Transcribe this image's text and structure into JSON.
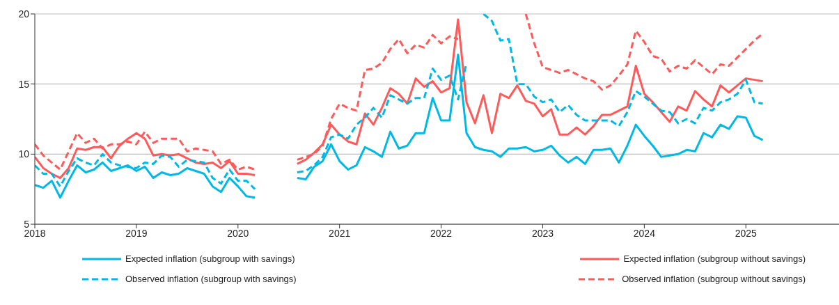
{
  "chart_data": {
    "type": "line",
    "x": [
      "2018-01",
      "2018-02",
      "2018-03",
      "2018-04",
      "2018-05",
      "2018-06",
      "2018-07",
      "2018-08",
      "2018-09",
      "2018-10",
      "2018-11",
      "2018-12",
      "2019-01",
      "2019-02",
      "2019-03",
      "2019-04",
      "2019-05",
      "2019-06",
      "2019-07",
      "2019-08",
      "2019-09",
      "2019-10",
      "2019-11",
      "2019-12",
      "2020-01",
      "2020-02",
      "2020-03",
      "2020-04",
      "2020-05",
      "2020-06",
      "2020-07",
      "2020-08",
      "2020-09",
      "2020-10",
      "2020-11",
      "2020-12",
      "2021-01",
      "2021-02",
      "2021-03",
      "2021-04",
      "2021-05",
      "2021-06",
      "2021-07",
      "2021-08",
      "2021-09",
      "2021-10",
      "2021-11",
      "2021-12",
      "2022-01",
      "2022-02",
      "2022-03",
      "2022-04",
      "2022-05",
      "2022-06",
      "2022-07",
      "2022-08",
      "2022-09",
      "2022-10",
      "2022-11",
      "2022-12",
      "2023-01",
      "2023-02",
      "2023-03",
      "2023-04",
      "2023-05",
      "2023-06",
      "2023-07",
      "2023-08",
      "2023-09",
      "2023-10",
      "2023-11",
      "2023-12",
      "2024-01",
      "2024-02",
      "2024-03",
      "2024-04",
      "2024-05",
      "2024-06",
      "2024-07",
      "2024-08",
      "2024-09",
      "2024-10",
      "2024-11",
      "2024-12",
      "2025-01",
      "2025-02",
      "2025-03"
    ],
    "series": [
      {
        "name": "Expected inflation (subgroup with savings)",
        "color": "#00b8e6",
        "line_style": "solid",
        "values": [
          7.8,
          7.6,
          8.1,
          6.9,
          8.1,
          9.2,
          8.7,
          8.9,
          9.4,
          8.8,
          9.0,
          9.2,
          8.8,
          9.1,
          8.3,
          8.7,
          8.5,
          8.6,
          9.0,
          8.8,
          8.6,
          7.7,
          7.3,
          8.3,
          7.7,
          7.0,
          6.9,
          null,
          null,
          null,
          null,
          8.3,
          8.2,
          9.1,
          9.5,
          10.7,
          9.5,
          8.9,
          9.2,
          10.5,
          10.2,
          9.8,
          11.6,
          10.4,
          10.6,
          11.5,
          11.5,
          14.0,
          12.4,
          12.4,
          17.1,
          11.5,
          10.5,
          10.3,
          10.2,
          9.8,
          10.4,
          10.4,
          10.5,
          10.2,
          10.3,
          10.6,
          9.9,
          9.4,
          9.8,
          9.3,
          10.3,
          10.3,
          10.4,
          9.4,
          10.6,
          12.1,
          11.3,
          10.6,
          9.8,
          9.9,
          10.0,
          10.3,
          10.2,
          11.5,
          11.2,
          12.1,
          11.8,
          12.7,
          12.6,
          11.3,
          11.0
        ]
      },
      {
        "name": "Expected inflation (subgroup without savings)",
        "color": "#ff5a5a",
        "line_style": "solid",
        "values": [
          9.8,
          9.0,
          8.6,
          8.3,
          9.0,
          10.4,
          10.3,
          10.5,
          10.5,
          9.7,
          10.6,
          11.1,
          11.5,
          11.1,
          9.9,
          10.0,
          9.9,
          10.0,
          9.7,
          9.4,
          9.3,
          9.4,
          9.0,
          9.5,
          8.6,
          8.6,
          8.5,
          null,
          null,
          null,
          null,
          9.3,
          9.6,
          10.1,
          10.7,
          12.1,
          11.4,
          10.9,
          10.7,
          12.9,
          12.1,
          13.3,
          14.7,
          14.3,
          13.6,
          15.4,
          14.8,
          15.2,
          14.4,
          14.7,
          19.6,
          13.7,
          12.2,
          14.2,
          11.5,
          14.3,
          14.0,
          14.9,
          13.8,
          13.6,
          12.7,
          13.2,
          11.4,
          11.4,
          11.9,
          11.4,
          12.0,
          12.8,
          12.8,
          13.1,
          13.4,
          16.3,
          14.3,
          13.7,
          13.0,
          12.3,
          13.4,
          13.1,
          14.5,
          13.9,
          13.4,
          14.9,
          14.4,
          14.9,
          15.4,
          15.3,
          15.2
        ]
      },
      {
        "name": "Observed inflation (subgroup with savings)",
        "color": "#00b8e6",
        "line_style": "dashed",
        "values": [
          9.2,
          8.6,
          8.6,
          7.7,
          8.8,
          9.7,
          9.4,
          9.2,
          10.0,
          9.4,
          9.2,
          9.1,
          9.0,
          9.4,
          9.3,
          9.9,
          9.8,
          9.1,
          9.6,
          9.5,
          9.4,
          8.3,
          7.9,
          8.9,
          8.1,
          8.1,
          7.5,
          null,
          null,
          null,
          null,
          8.7,
          8.8,
          9.2,
          9.8,
          11.2,
          11.4,
          11.1,
          12.1,
          12.6,
          13.3,
          12.6,
          14.2,
          13.9,
          13.6,
          14.0,
          14.0,
          16.1,
          15.3,
          15.6,
          13.9,
          16.5,
          null,
          20.0,
          19.5,
          18.1,
          18.2,
          15.0,
          15.0,
          14.1,
          13.7,
          13.9,
          13.0,
          13.5,
          12.8,
          12.4,
          12.4,
          12.4,
          12.4,
          12.0,
          13.0,
          14.5,
          14.1,
          13.6,
          13.1,
          13.0,
          12.2,
          12.5,
          12.2,
          13.3,
          13.1,
          13.7,
          13.9,
          14.3,
          15.3,
          13.7,
          13.6
        ]
      },
      {
        "name": "Observed inflation (subgroup without savings)",
        "color": "#ff5a5a",
        "line_style": "dashed",
        "values": [
          10.7,
          9.9,
          9.4,
          8.9,
          10.2,
          11.5,
          10.8,
          11.1,
          10.4,
          10.7,
          10.7,
          10.9,
          10.7,
          11.6,
          10.8,
          11.1,
          11.1,
          11.1,
          10.2,
          10.4,
          10.3,
          10.2,
          9.3,
          9.6,
          8.9,
          9.1,
          8.9,
          null,
          null,
          null,
          null,
          9.6,
          9.8,
          10.0,
          10.6,
          12.5,
          13.6,
          13.3,
          13.1,
          16.0,
          16.1,
          16.5,
          17.5,
          18.2,
          17.2,
          17.8,
          17.6,
          18.5,
          17.9,
          18.4,
          18.2,
          null,
          null,
          null,
          null,
          null,
          null,
          null,
          20.0,
          17.9,
          16.2,
          16.0,
          15.8,
          16.0,
          15.7,
          15.4,
          15.2,
          14.6,
          14.9,
          15.6,
          16.4,
          18.8,
          18.0,
          17.0,
          16.8,
          15.9,
          16.3,
          16.1,
          16.7,
          16.2,
          15.7,
          16.4,
          16.3,
          16.9,
          17.5,
          18.1,
          18.6
        ]
      }
    ],
    "xlim": [
      "2018-01",
      "2025-12"
    ],
    "xticks": [
      "2018",
      "2019",
      "2020",
      "2021",
      "2022",
      "2023",
      "2024",
      "2025"
    ],
    "ylim": [
      5,
      20
    ],
    "yticks": [
      5,
      10,
      15,
      20
    ],
    "grid": "y",
    "legend": "bottom"
  }
}
